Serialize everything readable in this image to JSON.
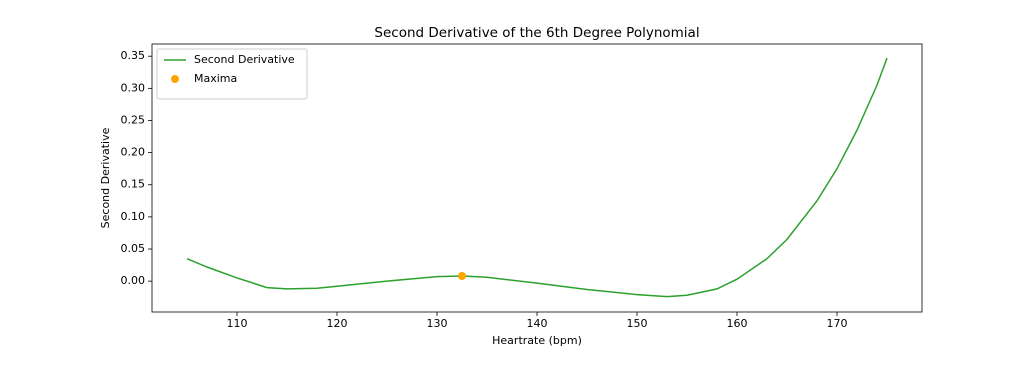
{
  "chart_data": {
    "type": "line",
    "title": "Second Derivative of the 6th Degree Polynomial",
    "xlabel": "Heartrate (bpm)",
    "ylabel": "Second Derivative",
    "series": [
      {
        "name": "Second Derivative",
        "type": "line",
        "color": "#2ca02c",
        "x": [
          105,
          107,
          110,
          113,
          115,
          118,
          120,
          125,
          130,
          132.5,
          135,
          140,
          145,
          150,
          153,
          155,
          158,
          160,
          163,
          165,
          168,
          170,
          172,
          174,
          175
        ],
        "values": [
          0.035,
          0.022,
          0.005,
          -0.01,
          -0.012,
          -0.011,
          -0.008,
          0.0,
          0.007,
          0.008,
          0.006,
          -0.003,
          -0.013,
          -0.021,
          -0.024,
          -0.022,
          -0.012,
          0.003,
          0.035,
          0.065,
          0.125,
          0.175,
          0.235,
          0.305,
          0.347
        ]
      },
      {
        "name": "Maxima",
        "type": "scatter",
        "color": "#ffa500",
        "x": [
          132.5
        ],
        "values": [
          0.008
        ]
      }
    ],
    "xlim": [
      101.5,
      178.5
    ],
    "ylim": [
      -0.048,
      0.369
    ],
    "xticks": [
      110,
      120,
      130,
      140,
      150,
      160,
      170
    ],
    "yticks": [
      {
        "value": 0,
        "label": "0.00"
      },
      {
        "value": 0.05,
        "label": "0.05"
      },
      {
        "value": 0.1,
        "label": "0.10"
      },
      {
        "value": 0.15,
        "label": "0.15"
      },
      {
        "value": 0.2,
        "label": "0.20"
      },
      {
        "value": 0.25,
        "label": "0.25"
      },
      {
        "value": 0.3,
        "label": "0.30"
      },
      {
        "value": 0.35,
        "label": "0.35"
      }
    ],
    "grid": false,
    "legend": "upper left"
  }
}
